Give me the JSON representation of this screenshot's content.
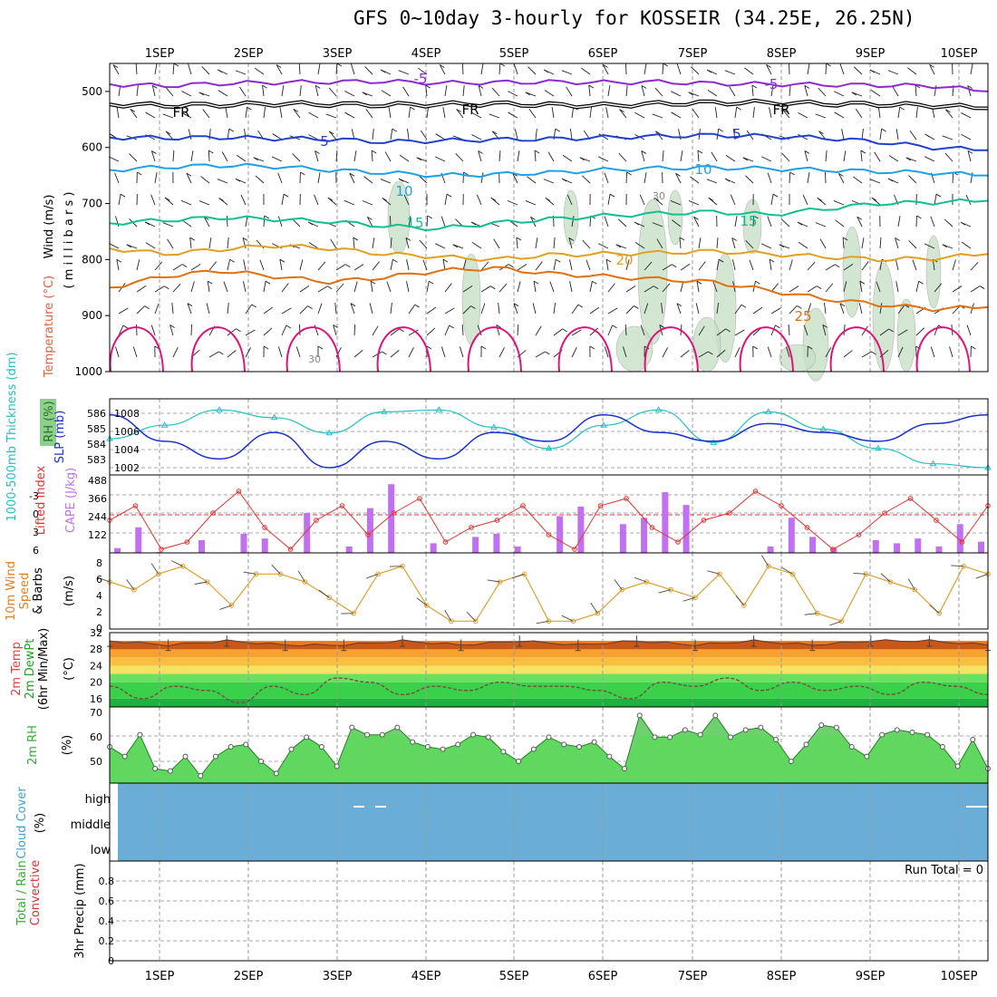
{
  "title": "GFS 0~10day 3-hourly for KOSSEIR (34.25E, 26.25N)",
  "date_labels": [
    "1SEP",
    "2SEP",
    "3SEP",
    "4SEP",
    "5SEP",
    "6SEP",
    "7SEP",
    "8SEP",
    "9SEP",
    "10SEP"
  ],
  "colors": {
    "contour_m5": "#8b2bd0",
    "contour_fr": "#000000",
    "contour_5": "#2040d0",
    "contour_10": "#1fa0e8",
    "contour_15": "#10c090",
    "contour_20": "#e0a020",
    "contour_25": "#e07010",
    "contour_30": "#e0107a",
    "rh_fill": "#c8e0c8",
    "thickness": "#20c0c8",
    "slp": "#1830d0",
    "lifted": "#e83030",
    "cape": "#c070f0",
    "wind10": "#e0a030",
    "rh2m_line": "#40d040",
    "cloud": "#6aaed8"
  },
  "panel_labels": {
    "upper_wind": "Wind (m/s)",
    "upper_temp": "Temperature (°C)",
    "upper_rh": "RH (%)",
    "upper_unit": "( m i l l i b a r s )",
    "thk": "1000-500mb Thickness (dm)",
    "slp": "SLP (mb)",
    "lifted": "Lifted Index",
    "cape": "CAPE (J/kg)",
    "wind10a": "10m Wind",
    "wind10b": "Speed",
    "wind10c": "& Barbs",
    "wind10unit": "(m/s)",
    "t2m_a": "2m Temp",
    "t2m_b": "2m DewPt",
    "t2m_c": "(6hr Min/Max)",
    "t2m_unit": "(°C)",
    "rh2m": "2m RH",
    "rh2m_unit": "(%)",
    "cloud_a": "Cloud Cover",
    "cloud_unit": "(%)",
    "precip_a": "Total / Rain",
    "precip_b": "Convective",
    "precip_c": "3hr Precip (mm)",
    "run_total": "Run Total = 0"
  },
  "contour_labels": [
    "-5",
    "-5",
    "FR",
    "FR",
    "FR",
    "5",
    "5",
    "10",
    "10",
    "15",
    "15",
    "20",
    "25",
    "30",
    "30"
  ],
  "chart_data": [
    {
      "type": "line",
      "name": "upper-air",
      "yticks": [
        "500",
        "600",
        "700",
        "800",
        "900",
        "1000"
      ],
      "ylim": [
        450,
        1000
      ],
      "contours": [
        {
          "label": "-5",
          "values": [
            487,
            490,
            486,
            484,
            483,
            482,
            485,
            484,
            483,
            484,
            483,
            486,
            487,
            488,
            489,
            490,
            500
          ]
        },
        {
          "label": "FR",
          "values": [
            523,
            525,
            524,
            522,
            523,
            524,
            523,
            522,
            524,
            525,
            522,
            520,
            520,
            522,
            523,
            525,
            530
          ]
        },
        {
          "label": "5",
          "values": [
            582,
            583,
            582,
            584,
            585,
            590,
            588,
            586,
            585,
            582,
            580,
            578,
            580,
            583,
            590,
            600,
            605
          ]
        },
        {
          "label": "10",
          "values": [
            640,
            635,
            632,
            634,
            640,
            645,
            650,
            648,
            645,
            640,
            637,
            636,
            638,
            640,
            643,
            645,
            650
          ]
        },
        {
          "label": "15",
          "values": [
            735,
            730,
            725,
            728,
            732,
            740,
            745,
            735,
            728,
            722,
            718,
            715,
            720,
            710,
            700,
            698,
            695
          ]
        },
        {
          "label": "20",
          "values": [
            780,
            790,
            782,
            775,
            780,
            790,
            795,
            800,
            792,
            790,
            788,
            785,
            790,
            795,
            800,
            798,
            790
          ]
        },
        {
          "label": "25",
          "values": [
            850,
            830,
            820,
            830,
            840,
            832,
            820,
            815,
            825,
            830,
            835,
            840,
            855,
            870,
            880,
            888,
            885
          ]
        }
      ]
    },
    {
      "type": "line",
      "name": "thickness-slp",
      "thickness_ticks": [
        "586",
        "585",
        "584",
        "583"
      ],
      "slp_ticks": [
        "1008",
        "1006",
        "1004",
        "1002"
      ],
      "thickness": [
        584.5,
        585.2,
        586.0,
        585.6,
        584.8,
        585.9,
        586.0,
        585.1,
        584.0,
        585.2,
        586.0,
        584.3,
        585.9,
        585.0,
        584.0,
        583.2,
        583.0
      ],
      "slp": [
        1008,
        1005,
        1003,
        1006,
        1002,
        1005,
        1003,
        1006,
        1005,
        1008,
        1006,
        1005,
        1007,
        1006,
        1005,
        1007,
        1008
      ]
    },
    {
      "type": "bar",
      "name": "lifted-cape",
      "lifted_ticks": [
        "-3",
        "0",
        "3",
        "6"
      ],
      "cape_ticks": [
        "488",
        "366",
        "244",
        "122"
      ],
      "cape_bars": [
        30,
        160,
        5,
        0,
        80,
        0,
        120,
        90,
        0,
        250,
        0,
        40,
        280,
        430,
        0,
        60,
        0,
        100,
        120,
        40,
        0,
        230,
        290,
        0,
        180,
        220,
        380,
        300,
        0,
        0,
        0,
        40,
        220,
        100,
        30,
        0,
        80,
        60,
        90,
        40,
        180,
        70
      ],
      "lifted": [
        2,
        0,
        6,
        5,
        1,
        -2,
        3,
        6,
        2,
        0,
        4,
        1,
        -1,
        5,
        3,
        2,
        0,
        4,
        6,
        0,
        -1,
        3,
        5,
        2,
        1,
        -2,
        0,
        3,
        6,
        4,
        1,
        -1,
        2,
        5,
        0
      ]
    },
    {
      "type": "line",
      "name": "wind10m",
      "yticks": [
        "8",
        "6",
        "4",
        "2",
        "0"
      ],
      "ylim": [
        0,
        9
      ],
      "values": [
        6,
        5,
        7,
        8,
        6,
        3,
        7,
        7,
        6,
        4,
        2,
        7,
        8,
        3,
        1,
        1,
        6,
        7,
        1,
        1,
        2,
        5,
        6,
        5,
        4,
        7,
        3,
        8,
        7,
        2,
        1,
        7,
        6,
        5,
        2,
        8,
        7
      ]
    },
    {
      "type": "area",
      "name": "temp2m",
      "yticks": [
        "32",
        "28",
        "24",
        "20",
        "16"
      ],
      "ylim": [
        14,
        32
      ],
      "max_temp": [
        30,
        29,
        30,
        29,
        29,
        30,
        29,
        30,
        29,
        30,
        29,
        30,
        29,
        30,
        30,
        29
      ],
      "dewpoint": [
        19,
        16,
        19,
        18,
        15,
        19,
        17,
        21,
        20,
        17,
        19,
        18,
        20,
        19,
        19,
        18,
        16,
        20,
        19,
        21,
        18,
        20,
        18,
        19,
        17,
        20,
        19,
        17
      ]
    },
    {
      "type": "area",
      "name": "rh2m",
      "yticks": [
        "70",
        "60",
        "50"
      ],
      "ylim": [
        40,
        70
      ],
      "values": [
        55,
        51,
        60,
        46,
        45,
        51,
        43,
        51,
        55,
        56,
        49,
        44,
        54,
        59,
        55,
        47,
        63,
        60,
        60,
        63,
        57,
        55,
        54,
        56,
        60,
        59,
        53,
        49,
        54,
        59,
        56,
        55,
        57,
        51,
        46,
        68,
        59,
        59,
        62,
        60,
        68,
        59,
        62,
        63,
        58,
        49,
        56,
        64,
        63,
        55,
        51,
        60,
        62,
        61,
        60,
        55,
        47,
        58,
        46
      ]
    },
    {
      "type": "area",
      "name": "cloud",
      "yticks": [
        "high",
        "middle",
        "low"
      ]
    },
    {
      "type": "bar",
      "name": "precip",
      "yticks": [
        "0.8",
        "0.6",
        "0.4",
        "0.2",
        "0"
      ],
      "ylim": [
        0,
        1
      ]
    }
  ]
}
